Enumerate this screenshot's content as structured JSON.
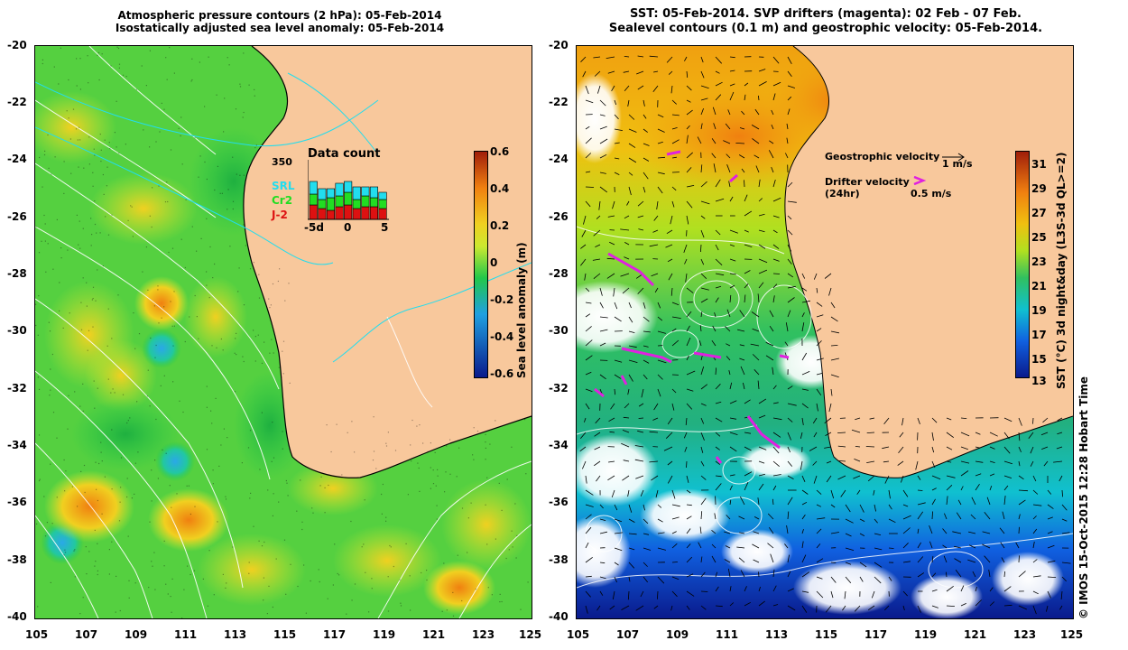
{
  "left_panel": {
    "title_line1": "Atmospheric pressure contours (2 hPa): 05-Feb-2014",
    "title_line2": "Isostatically adjusted sea level anomaly: 05-Feb-2014",
    "colorbar_label": "Sea level anomaly (m)",
    "colorbar_ticks": [
      "0.6",
      "0.4",
      "0.2",
      "0",
      "-0.2",
      "-0.4",
      "-0.6"
    ],
    "inset": {
      "title": "Data count",
      "max_label": "350",
      "series": [
        "SRL",
        "Cr2",
        "J-2"
      ],
      "series_colors": [
        "#22ddee",
        "#22dd22",
        "#dd1111"
      ],
      "x_ticks": [
        "-5d",
        "0",
        "5"
      ]
    }
  },
  "right_panel": {
    "title_line1": "SST: 05-Feb-2014. SVP drifters (magenta): 02 Feb - 07 Feb.",
    "title_line2": "Sealevel contours (0.1 m) and geostrophic velocity: 05-Feb-2014.",
    "colorbar_label": "SST (°C) 3d night&day (L3S-3d QL>=2)",
    "colorbar_ticks": [
      "31",
      "29",
      "27",
      "25",
      "23",
      "21",
      "19",
      "17",
      "15",
      "13"
    ],
    "legend_geo": "Geostrophic velocity",
    "legend_geo_scale": "1 m/s",
    "legend_drifter": "Drifter velocity",
    "legend_drifter_sub": "(24hr)",
    "legend_drifter_scale": "0.5 m/s"
  },
  "axes": {
    "lat_ticks": [
      "-20",
      "-22",
      "-24",
      "-26",
      "-28",
      "-30",
      "-32",
      "-34",
      "-36",
      "-38",
      "-40"
    ],
    "lon_ticks": [
      "105",
      "107",
      "109",
      "111",
      "113",
      "115",
      "117",
      "119",
      "121",
      "123",
      "125"
    ]
  },
  "credit": "© IMOS 15-Oct-2015 12:28 Hobart Time",
  "colors": {
    "land": "#f8c89c",
    "sla_ramp": [
      "#0a1a8c",
      "#1fa0e0",
      "#22c84a",
      "#cce830",
      "#f0d020",
      "#f08010",
      "#a01e0a"
    ],
    "sst_ramp": [
      "#0a1a8c",
      "#1060e0",
      "#10c0d0",
      "#30c060",
      "#b0e020",
      "#f0c010",
      "#f08010",
      "#a01e0a"
    ]
  }
}
